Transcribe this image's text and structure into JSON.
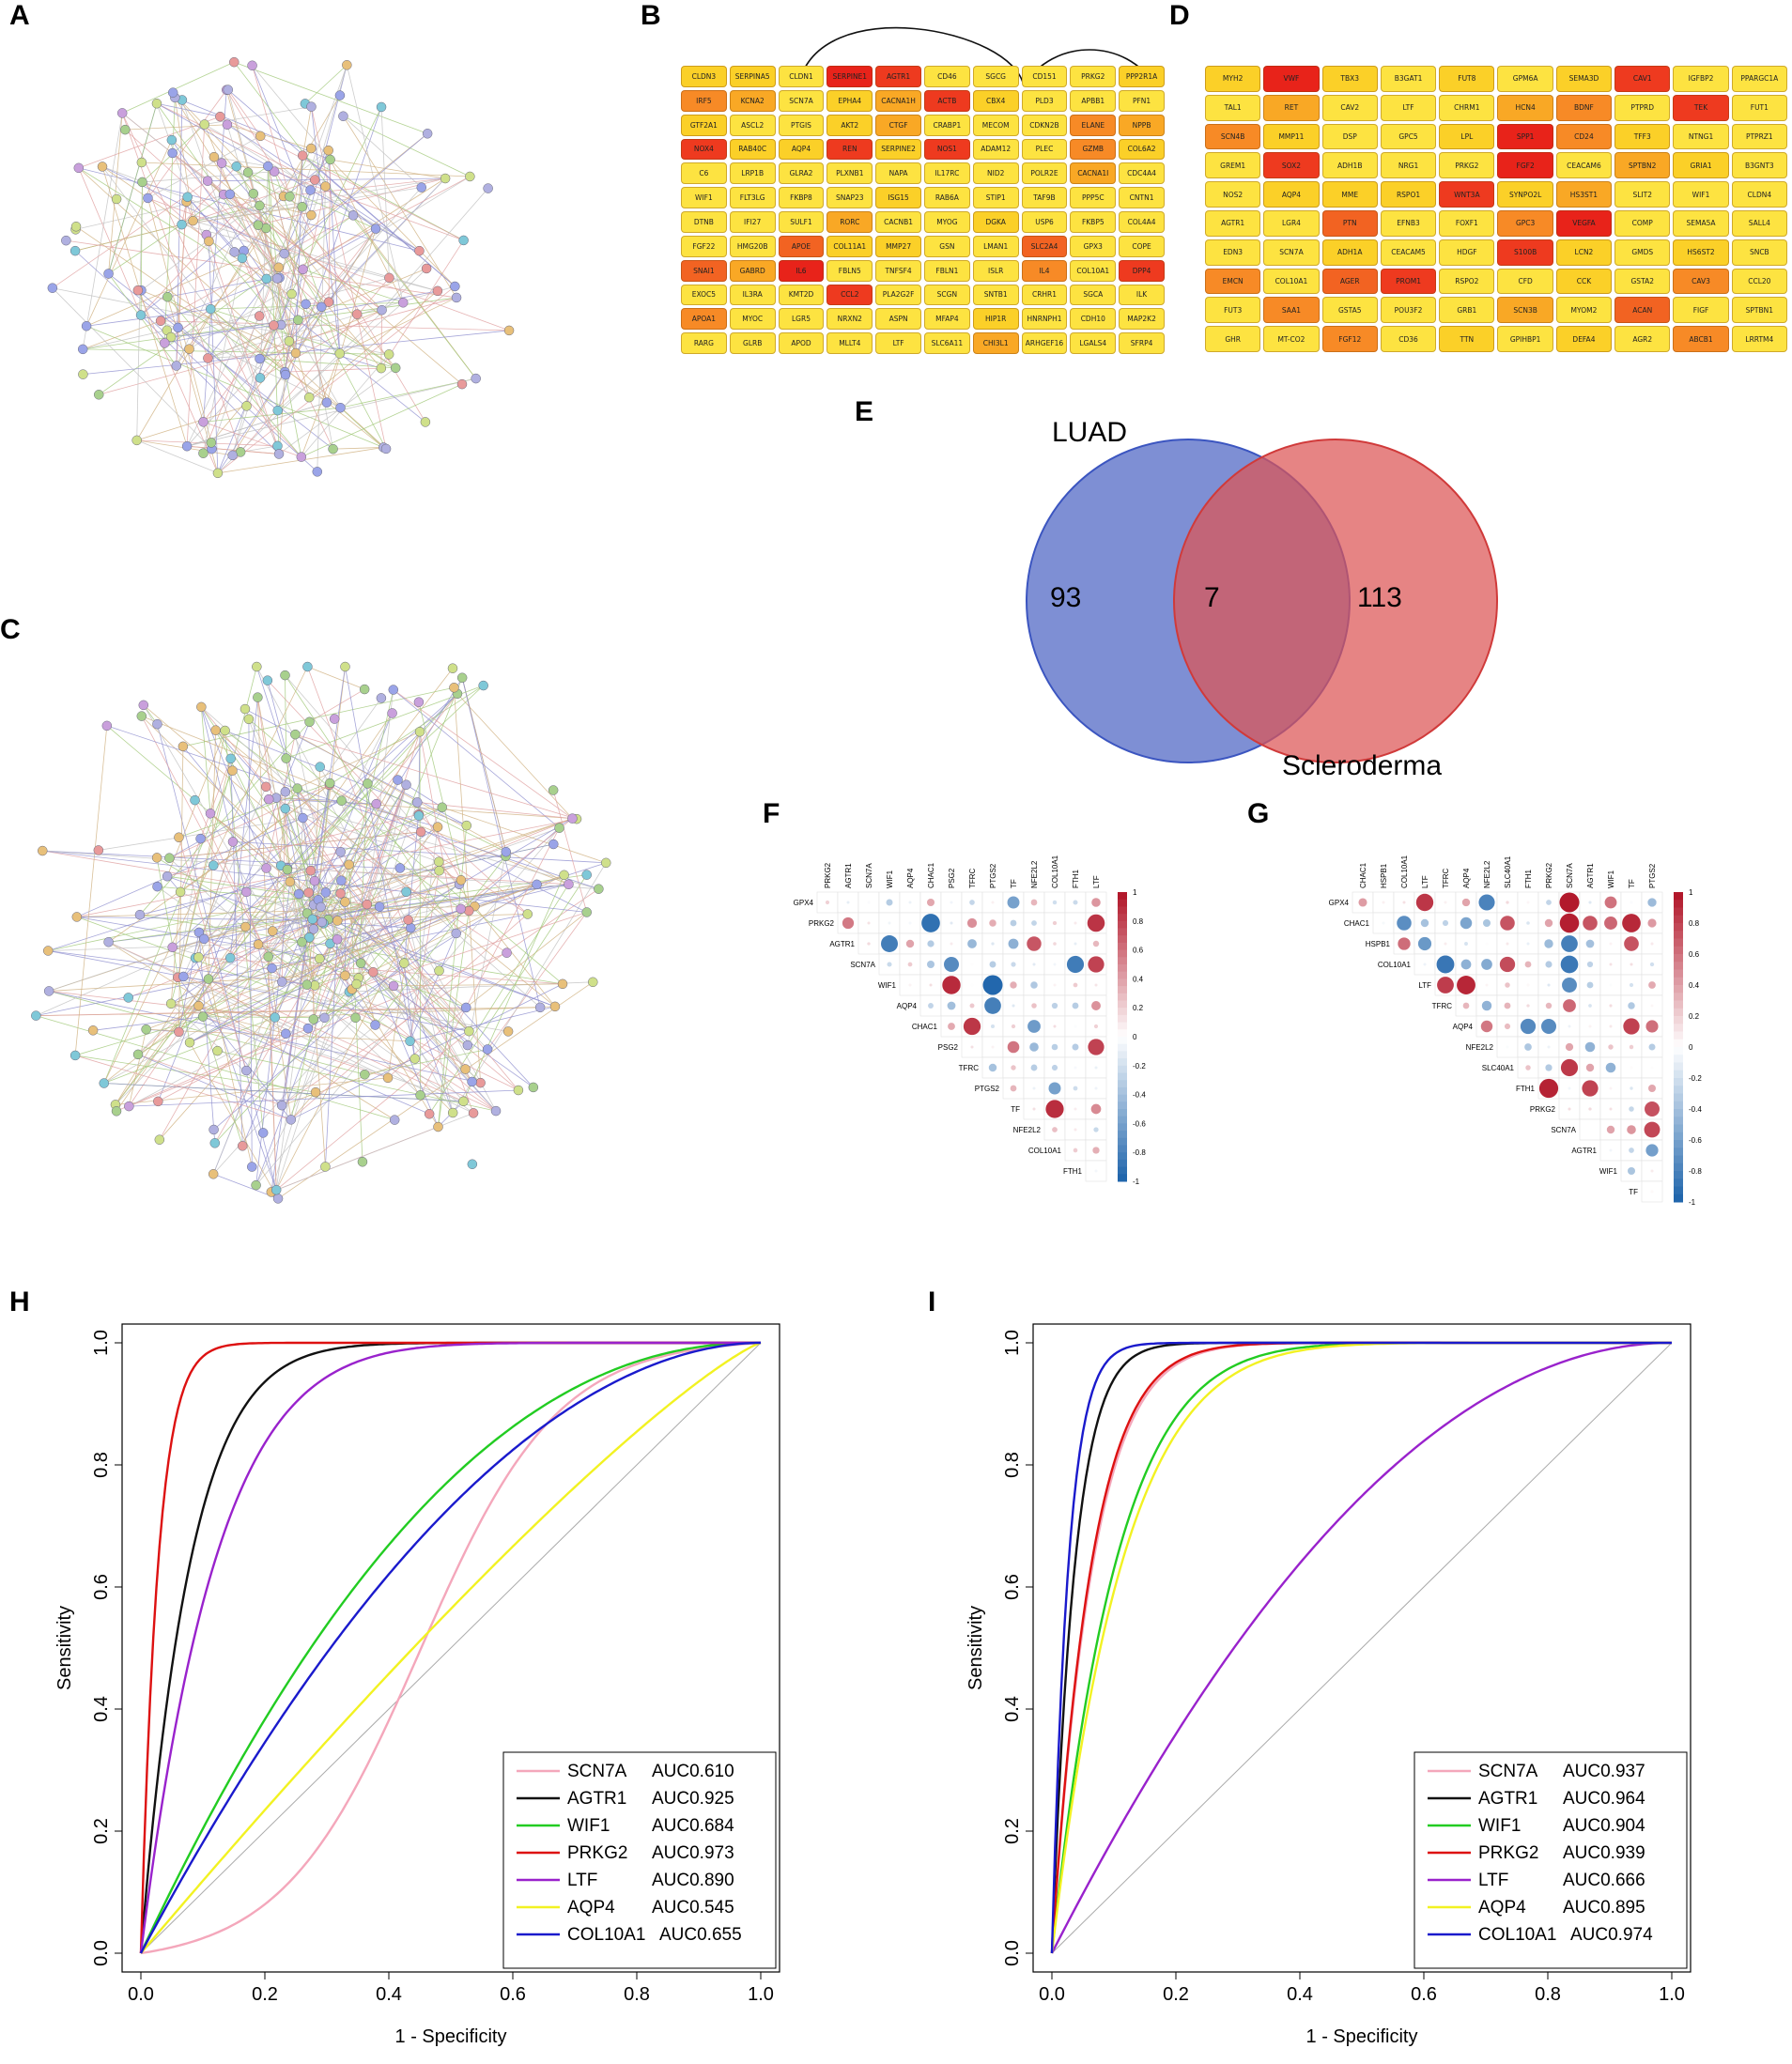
{
  "panels": {
    "a": "A",
    "b": "B",
    "c": "C",
    "d": "D",
    "e": "E",
    "f": "F",
    "g": "G",
    "h": "H",
    "i": "I"
  },
  "colors": {
    "dark_red": "#e8231a",
    "red": "#ee3a1f",
    "orange_red": "#f26322",
    "orange": "#f78a26",
    "light_orange": "#f9a825",
    "yellow": "#fbd028",
    "light_yellow": "#fde341"
  },
  "grid_b": {
    "genes": [
      [
        "CLDN3",
        "SERPINA5",
        "CLDN1",
        "SERPINE1",
        "AGTR1",
        "CD46",
        "SGCG",
        "CD151",
        "PRKG2",
        "PPP2R1A"
      ],
      [
        "IRF5",
        "KCNA2",
        "SCN7A",
        "EPHA4",
        "CACNA1H",
        "ACTB",
        "CBX4",
        "PLD3",
        "APBB1",
        "PFN1"
      ],
      [
        "GTF2A1",
        "ASCL2",
        "PTGIS",
        "AKT2",
        "CTGF",
        "CRABP1",
        "MECOM",
        "CDKN2B",
        "ELANE",
        "NPPB"
      ],
      [
        "NOX4",
        "RAB40C",
        "AQP4",
        "REN",
        "SERPINE2",
        "NOS1",
        "ADAM12",
        "PLEC",
        "GZMB",
        "COL6A2"
      ],
      [
        "C6",
        "LRP1B",
        "GLRA2",
        "PLXNB1",
        "NAPA",
        "IL17RC",
        "NID2",
        "POLR2E",
        "CACNA1I",
        "CDC4A4"
      ],
      [
        "WIF1",
        "FLT3LG",
        "FKBP8",
        "SNAP23",
        "ISG15",
        "RAB6A",
        "STIP1",
        "TAF9B",
        "PPP5C",
        "CNTN1"
      ],
      [
        "DTNB",
        "IFI27",
        "SULF1",
        "RORC",
        "CACNB1",
        "MYOG",
        "DGKA",
        "USP6",
        "FKBP5",
        "COL4A4"
      ],
      [
        "FGF22",
        "HMG20B",
        "APOE",
        "COL11A1",
        "MMP27",
        "GSN",
        "LMAN1",
        "SLC2A4",
        "GPX3",
        "COPE"
      ],
      [
        "SNAI1",
        "GABRD",
        "IL6",
        "FBLN5",
        "TNFSF4",
        "FBLN1",
        "ISLR",
        "IL4",
        "COL10A1",
        "DPP4"
      ],
      [
        "EXOC5",
        "IL3RA",
        "KMT2D",
        "CCL2",
        "PLA2G2F",
        "SCGN",
        "SNTB1",
        "CRHR1",
        "SGCA",
        "ILK"
      ],
      [
        "APOA1",
        "MYOC",
        "LGR5",
        "NRXN2",
        "ASPN",
        "MFAP4",
        "HIP1R",
        "HNRNPH1",
        "CDH10",
        "MAP2K2"
      ],
      [
        "RARG",
        "GLRB",
        "APOD",
        "MLLT4",
        "LTF",
        "SLC6A11",
        "CHI3L1",
        "ARHGEF16",
        "LGALS4",
        "SFRP4"
      ]
    ],
    "levels": [
      [
        5,
        5,
        6,
        0,
        1,
        6,
        6,
        6,
        6,
        5
      ],
      [
        3,
        4,
        6,
        5,
        4,
        1,
        5,
        6,
        6,
        6
      ],
      [
        5,
        6,
        6,
        5,
        4,
        6,
        6,
        6,
        3,
        4
      ],
      [
        1,
        5,
        5,
        1,
        5,
        1,
        6,
        6,
        3,
        5
      ],
      [
        6,
        6,
        6,
        6,
        6,
        6,
        6,
        6,
        4,
        6
      ],
      [
        6,
        6,
        6,
        6,
        5,
        6,
        6,
        6,
        6,
        6
      ],
      [
        6,
        6,
        6,
        4,
        6,
        6,
        5,
        6,
        6,
        6
      ],
      [
        6,
        6,
        2,
        5,
        5,
        6,
        6,
        2,
        6,
        6
      ],
      [
        2,
        4,
        0,
        6,
        6,
        6,
        6,
        3,
        6,
        1
      ],
      [
        6,
        6,
        6,
        1,
        6,
        6,
        6,
        6,
        6,
        6
      ],
      [
        3,
        6,
        6,
        6,
        6,
        6,
        5,
        6,
        6,
        6
      ],
      [
        6,
        6,
        6,
        6,
        6,
        6,
        4,
        6,
        6,
        6
      ]
    ]
  },
  "grid_d": {
    "genes": [
      [
        "MYH2",
        "VWF",
        "TBX3",
        "B3GAT1",
        "FUT8",
        "GPM6A",
        "SEMA3D",
        "CAV1",
        "IGFBP2",
        "PPARGC1A"
      ],
      [
        "TAL1",
        "RET",
        "CAV2",
        "LTF",
        "CHRM1",
        "HCN4",
        "BDNF",
        "PTPRD",
        "TEK",
        "FUT1"
      ],
      [
        "SCN4B",
        "MMP11",
        "DSP",
        "GPC5",
        "LPL",
        "SPP1",
        "CD24",
        "TFF3",
        "NTNG1",
        "PTPRZ1"
      ],
      [
        "GREM1",
        "SOX2",
        "ADH1B",
        "NRG1",
        "PRKG2",
        "FGF2",
        "CEACAM6",
        "SPTBN2",
        "GRIA1",
        "B3GNT3"
      ],
      [
        "NOS2",
        "AQP4",
        "MME",
        "RSPO1",
        "WNT3A",
        "SYNPO2L",
        "HS3ST1",
        "SLIT2",
        "WIF1",
        "CLDN4"
      ],
      [
        "AGTR1",
        "LGR4",
        "PTN",
        "EFNB3",
        "FOXF1",
        "GPC3",
        "VEGFA",
        "COMP",
        "SEMA5A",
        "SALL4"
      ],
      [
        "EDN3",
        "SCN7A",
        "ADH1A",
        "CEACAM5",
        "HDGF",
        "S100B",
        "LCN2",
        "GMDS",
        "HS6ST2",
        "SNCB"
      ],
      [
        "EMCN",
        "COL10A1",
        "AGER",
        "PROM1",
        "RSPO2",
        "CFD",
        "CCK",
        "GSTA2",
        "CAV3",
        "CCL20"
      ],
      [
        "FUT3",
        "SAA1",
        "GSTA5",
        "POU3F2",
        "GRB1",
        "SCN3B",
        "MYOM2",
        "ACAN",
        "FIGF",
        "SPTBN1"
      ],
      [
        "GHR",
        "MT-CO2",
        "FGF12",
        "CD36",
        "TTN",
        "GPIHBP1",
        "DEFA4",
        "AGR2",
        "ABCB1",
        "LRRTM4"
      ]
    ],
    "levels": [
      [
        5,
        0,
        5,
        6,
        5,
        6,
        5,
        1,
        6,
        6
      ],
      [
        6,
        4,
        6,
        6,
        6,
        4,
        3,
        6,
        1,
        6
      ],
      [
        3,
        5,
        6,
        6,
        5,
        0,
        3,
        5,
        6,
        6
      ],
      [
        6,
        1,
        6,
        6,
        6,
        0,
        6,
        4,
        5,
        6
      ],
      [
        6,
        5,
        5,
        5,
        1,
        5,
        4,
        6,
        6,
        6
      ],
      [
        6,
        6,
        2,
        6,
        6,
        3,
        0,
        6,
        6,
        6
      ],
      [
        6,
        6,
        5,
        6,
        6,
        1,
        5,
        6,
        5,
        6
      ],
      [
        3,
        6,
        2,
        1,
        6,
        6,
        5,
        6,
        3,
        6
      ],
      [
        6,
        3,
        6,
        6,
        6,
        4,
        6,
        2,
        6,
        6
      ],
      [
        6,
        6,
        3,
        6,
        5,
        6,
        5,
        6,
        3,
        6
      ]
    ]
  },
  "venn": {
    "left_label": "LUAD",
    "right_label": "Scleroderma",
    "left_only": "93",
    "overlap": "7",
    "right_only": "113"
  },
  "corr_f": {
    "columns": [
      "PRKG2",
      "AGTR1",
      "SCN7A",
      "WIF1",
      "AQP4",
      "CHAC1",
      "PSG2",
      "TFRC",
      "PTGS2",
      "TF",
      "NFE2L2",
      "COL10A1",
      "FTH1",
      "LTF"
    ],
    "rows": [
      "GPX4",
      "PRKG2",
      "AGTR1",
      "SCN7A",
      "WIF1",
      "AQP4",
      "CHAC1",
      "PSG2",
      "TFRC",
      "PTGS2",
      "TF",
      "NFE2L2",
      "COL10A1",
      "FTH1"
    ]
  },
  "corr_g": {
    "columns": [
      "CHAC1",
      "HSPB1",
      "COL10A1",
      "LTF",
      "TFRC",
      "AQP4",
      "NFE2L2",
      "SLC40A1",
      "FTH1",
      "PRKG2",
      "SCN7A",
      "AGTR1",
      "WIF1",
      "TF",
      "PTGS2"
    ],
    "rows": [
      "GPX4",
      "CHAC1",
      "HSPB1",
      "COL10A1",
      "LTF",
      "TFRC",
      "AQP4",
      "NFE2L2",
      "SLC40A1",
      "FTH1",
      "PRKG2",
      "SCN7A",
      "AGTR1",
      "WIF1",
      "TF"
    ]
  },
  "colorbar_ticks": [
    "1",
    "0.8",
    "0.6",
    "0.4",
    "0.2",
    "0",
    "-0.2",
    "-0.4",
    "-0.6",
    "-0.8",
    "-1"
  ],
  "chart_data": [
    {
      "type": "line",
      "title": "",
      "xlabel": "1 - Specificity",
      "ylabel": "Sensitivity",
      "xlim": [
        0,
        1
      ],
      "ylim": [
        0,
        1
      ],
      "x_ticks": [
        "0.0",
        "0.2",
        "0.4",
        "0.6",
        "0.8",
        "1.0"
      ],
      "y_ticks": [
        "0.0",
        "0.2",
        "0.4",
        "0.6",
        "0.8",
        "1.0"
      ],
      "series": [
        {
          "name": "SCN7A",
          "auc": "AUC0.610",
          "color": "#f4a7bb",
          "shape": "sigmoid"
        },
        {
          "name": "AGTR1",
          "auc": "AUC0.925",
          "color": "#111111",
          "shape": "concave"
        },
        {
          "name": "WIF1",
          "auc": "AUC0.684",
          "color": "#22cc22",
          "shape": "concave"
        },
        {
          "name": "PRKG2",
          "auc": "AUC0.973",
          "color": "#dd1111",
          "shape": "concave"
        },
        {
          "name": "LTF",
          "auc": "AUC0.890",
          "color": "#9922cc",
          "shape": "concave"
        },
        {
          "name": "AQP4",
          "auc": "AUC0.545",
          "color": "#f2f222",
          "shape": "concave"
        },
        {
          "name": "COL10A1",
          "auc": "AUC0.655",
          "color": "#1a1acc",
          "shape": "concave"
        }
      ]
    },
    {
      "type": "line",
      "title": "",
      "xlabel": "1 - Specificity",
      "ylabel": "Sensitivity",
      "xlim": [
        0,
        1
      ],
      "ylim": [
        0,
        1
      ],
      "x_ticks": [
        "0.0",
        "0.2",
        "0.4",
        "0.6",
        "0.8",
        "1.0"
      ],
      "y_ticks": [
        "0.0",
        "0.2",
        "0.4",
        "0.6",
        "0.8",
        "1.0"
      ],
      "series": [
        {
          "name": "SCN7A",
          "auc": "AUC0.937",
          "color": "#f4a7bb",
          "shape": "concave"
        },
        {
          "name": "AGTR1",
          "auc": "AUC0.964",
          "color": "#111111",
          "shape": "concave"
        },
        {
          "name": "WIF1",
          "auc": "AUC0.904",
          "color": "#22cc22",
          "shape": "concave"
        },
        {
          "name": "PRKG2",
          "auc": "AUC0.939",
          "color": "#dd1111",
          "shape": "concave"
        },
        {
          "name": "LTF",
          "auc": "AUC0.666",
          "color": "#9922cc",
          "shape": "concave"
        },
        {
          "name": "AQP4",
          "auc": "AUC0.895",
          "color": "#f2f222",
          "shape": "concave"
        },
        {
          "name": "COL10A1",
          "auc": "AUC0.974",
          "color": "#1a1acc",
          "shape": "concave"
        }
      ]
    }
  ]
}
